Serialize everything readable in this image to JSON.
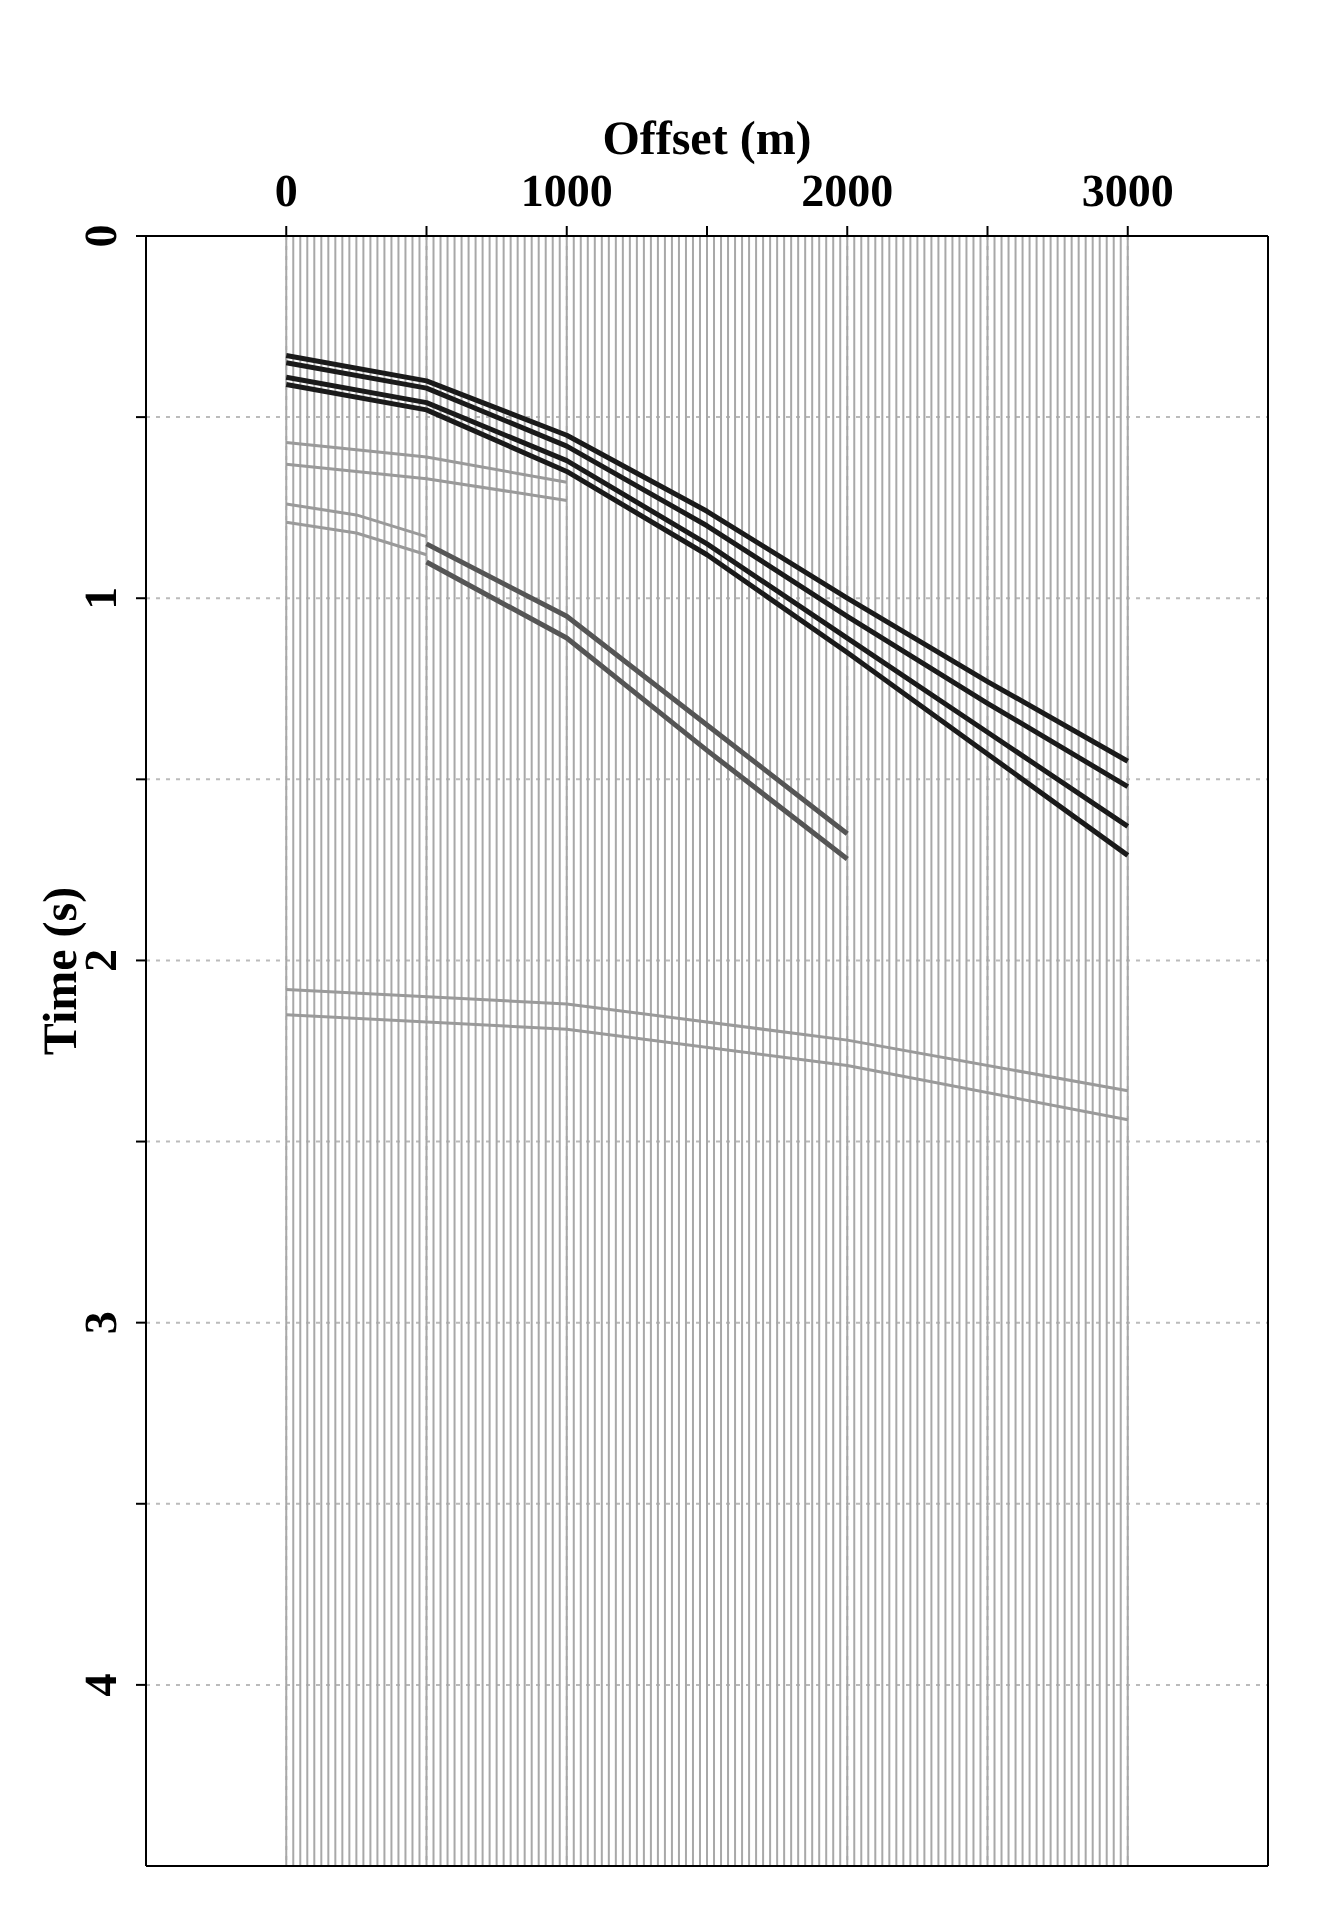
{
  "chart_data": {
    "type": "line",
    "xlabel": "Offset (m)",
    "ylabel": "Time (s)",
    "xlim": [
      -500,
      3500
    ],
    "ylim": [
      4.5,
      0
    ],
    "xticks": [
      0,
      {
        "value": 500,
        "label": null
      },
      1000,
      {
        "value": 1500,
        "label": null
      },
      2000,
      {
        "value": 2500,
        "label": null
      },
      3000
    ],
    "yticks": [
      0,
      {
        "value": 0.5,
        "label": null
      },
      1,
      {
        "value": 1.5,
        "label": null
      },
      2,
      {
        "value": 2.5,
        "label": null
      },
      3,
      {
        "value": 3.5,
        "label": null
      },
      4
    ],
    "grid": true,
    "marker": "none",
    "line_style": "solid",
    "series": [
      {
        "color": "#1a1a1a",
        "x": [
          0,
          500,
          1000,
          1500,
          2000,
          2500,
          3000
        ],
        "values": [
          0.33,
          0.4,
          0.55,
          0.76,
          1.0,
          1.23,
          1.45
        ]
      },
      {
        "color": "#1a1a1a",
        "x": [
          0,
          500,
          1000,
          1500,
          2000,
          2500,
          3000
        ],
        "values": [
          0.35,
          0.42,
          0.58,
          0.8,
          1.05,
          1.29,
          1.52
        ]
      },
      {
        "color": "#1a1a1a",
        "x": [
          0,
          500,
          1000,
          1500,
          2000,
          2500,
          3000
        ],
        "values": [
          0.39,
          0.46,
          0.62,
          0.85,
          1.11,
          1.37,
          1.63
        ]
      },
      {
        "color": "#1a1a1a",
        "x": [
          0,
          500,
          1000,
          1500,
          2000,
          2500,
          3000
        ],
        "values": [
          0.41,
          0.48,
          0.65,
          0.88,
          1.15,
          1.43,
          1.71
        ]
      },
      {
        "color": "#9a9a9a",
        "x": [
          0,
          500,
          1000
        ],
        "values": [
          0.57,
          0.61,
          0.68
        ]
      },
      {
        "color": "#9a9a9a",
        "x": [
          0,
          500,
          1000
        ],
        "values": [
          0.63,
          0.67,
          0.73
        ]
      },
      {
        "color": "#9a9a9a",
        "x": [
          0,
          250,
          500
        ],
        "values": [
          0.74,
          0.77,
          0.83
        ]
      },
      {
        "color": "#9a9a9a",
        "x": [
          0,
          250,
          500
        ],
        "values": [
          0.79,
          0.82,
          0.88
        ]
      },
      {
        "color": "#555555",
        "x": [
          500,
          1000,
          1500,
          2000
        ],
        "values": [
          0.85,
          1.05,
          1.35,
          1.65
        ]
      },
      {
        "color": "#555555",
        "x": [
          500,
          1000,
          1500,
          2000
        ],
        "values": [
          0.9,
          1.11,
          1.42,
          1.72
        ]
      },
      {
        "color": "#9a9a9a",
        "x": [
          0,
          1000,
          2000,
          3000
        ],
        "values": [
          2.08,
          2.12,
          2.22,
          2.36
        ]
      },
      {
        "color": "#9a9a9a",
        "x": [
          0,
          1000,
          2000,
          3000
        ],
        "values": [
          2.15,
          2.19,
          2.29,
          2.44
        ]
      }
    ],
    "ref_lines": [
      {
        "axis": "x",
        "value": 0,
        "color": "#a8a8a8"
      },
      {
        "axis": "x",
        "value": 25,
        "color": "#a8a8a8"
      },
      {
        "axis": "x",
        "value": 50,
        "color": "#a8a8a8"
      },
      {
        "axis": "x",
        "value": 75,
        "color": "#a8a8a8"
      },
      {
        "axis": "x",
        "value": 100,
        "color": "#a8a8a8"
      },
      {
        "axis": "x",
        "value": 125,
        "color": "#a8a8a8"
      },
      {
        "axis": "x",
        "value": 150,
        "color": "#a8a8a8"
      },
      {
        "axis": "x",
        "value": 175,
        "color": "#a8a8a8"
      },
      {
        "axis": "x",
        "value": 200,
        "color": "#a8a8a8"
      },
      {
        "axis": "x",
        "value": 225,
        "color": "#a8a8a8"
      },
      {
        "axis": "x",
        "value": 250,
        "color": "#a8a8a8"
      },
      {
        "axis": "x",
        "value": 275,
        "color": "#a8a8a8"
      },
      {
        "axis": "x",
        "value": 300,
        "color": "#a8a8a8"
      },
      {
        "axis": "x",
        "value": 325,
        "color": "#a8a8a8"
      },
      {
        "axis": "x",
        "value": 350,
        "color": "#a8a8a8"
      },
      {
        "axis": "x",
        "value": 375,
        "color": "#a8a8a8"
      },
      {
        "axis": "x",
        "value": 400,
        "color": "#a8a8a8"
      },
      {
        "axis": "x",
        "value": 425,
        "color": "#a8a8a8"
      },
      {
        "axis": "x",
        "value": 450,
        "color": "#a8a8a8"
      },
      {
        "axis": "x",
        "value": 475,
        "color": "#a8a8a8"
      },
      {
        "axis": "x",
        "value": 500,
        "color": "#a8a8a8"
      },
      {
        "axis": "x",
        "value": 525,
        "color": "#a8a8a8"
      },
      {
        "axis": "x",
        "value": 550,
        "color": "#a8a8a8"
      },
      {
        "axis": "x",
        "value": 575,
        "color": "#a8a8a8"
      },
      {
        "axis": "x",
        "value": 600,
        "color": "#a8a8a8"
      },
      {
        "axis": "x",
        "value": 625,
        "color": "#a8a8a8"
      },
      {
        "axis": "x",
        "value": 650,
        "color": "#a8a8a8"
      },
      {
        "axis": "x",
        "value": 675,
        "color": "#a8a8a8"
      },
      {
        "axis": "x",
        "value": 700,
        "color": "#a8a8a8"
      },
      {
        "axis": "x",
        "value": 725,
        "color": "#a8a8a8"
      },
      {
        "axis": "x",
        "value": 750,
        "color": "#a8a8a8"
      },
      {
        "axis": "x",
        "value": 775,
        "color": "#a8a8a8"
      },
      {
        "axis": "x",
        "value": 800,
        "color": "#a8a8a8"
      },
      {
        "axis": "x",
        "value": 825,
        "color": "#a8a8a8"
      },
      {
        "axis": "x",
        "value": 850,
        "color": "#a8a8a8"
      },
      {
        "axis": "x",
        "value": 875,
        "color": "#a8a8a8"
      },
      {
        "axis": "x",
        "value": 900,
        "color": "#a8a8a8"
      },
      {
        "axis": "x",
        "value": 925,
        "color": "#a8a8a8"
      },
      {
        "axis": "x",
        "value": 950,
        "color": "#a8a8a8"
      },
      {
        "axis": "x",
        "value": 975,
        "color": "#a8a8a8"
      },
      {
        "axis": "x",
        "value": 1000,
        "color": "#a8a8a8"
      },
      {
        "axis": "x",
        "value": 1025,
        "color": "#a8a8a8"
      },
      {
        "axis": "x",
        "value": 1050,
        "color": "#a8a8a8"
      },
      {
        "axis": "x",
        "value": 1075,
        "color": "#a8a8a8"
      },
      {
        "axis": "x",
        "value": 1100,
        "color": "#a8a8a8"
      },
      {
        "axis": "x",
        "value": 1125,
        "color": "#a8a8a8"
      },
      {
        "axis": "x",
        "value": 1150,
        "color": "#a8a8a8"
      },
      {
        "axis": "x",
        "value": 1175,
        "color": "#a8a8a8"
      },
      {
        "axis": "x",
        "value": 1200,
        "color": "#a8a8a8"
      },
      {
        "axis": "x",
        "value": 1225,
        "color": "#a8a8a8"
      },
      {
        "axis": "x",
        "value": 1250,
        "color": "#a8a8a8"
      },
      {
        "axis": "x",
        "value": 1275,
        "color": "#a8a8a8"
      },
      {
        "axis": "x",
        "value": 1300,
        "color": "#a8a8a8"
      },
      {
        "axis": "x",
        "value": 1325,
        "color": "#a8a8a8"
      },
      {
        "axis": "x",
        "value": 1350,
        "color": "#a8a8a8"
      },
      {
        "axis": "x",
        "value": 1375,
        "color": "#a8a8a8"
      },
      {
        "axis": "x",
        "value": 1400,
        "color": "#a8a8a8"
      },
      {
        "axis": "x",
        "value": 1425,
        "color": "#a8a8a8"
      },
      {
        "axis": "x",
        "value": 1450,
        "color": "#a8a8a8"
      },
      {
        "axis": "x",
        "value": 1475,
        "color": "#a8a8a8"
      },
      {
        "axis": "x",
        "value": 1500,
        "color": "#a8a8a8"
      },
      {
        "axis": "x",
        "value": 1525,
        "color": "#a8a8a8"
      },
      {
        "axis": "x",
        "value": 1550,
        "color": "#a8a8a8"
      },
      {
        "axis": "x",
        "value": 1575,
        "color": "#a8a8a8"
      },
      {
        "axis": "x",
        "value": 1600,
        "color": "#a8a8a8"
      },
      {
        "axis": "x",
        "value": 1625,
        "color": "#a8a8a8"
      },
      {
        "axis": "x",
        "value": 1650,
        "color": "#a8a8a8"
      },
      {
        "axis": "x",
        "value": 1675,
        "color": "#a8a8a8"
      },
      {
        "axis": "x",
        "value": 1700,
        "color": "#a8a8a8"
      },
      {
        "axis": "x",
        "value": 1725,
        "color": "#a8a8a8"
      },
      {
        "axis": "x",
        "value": 1750,
        "color": "#a8a8a8"
      },
      {
        "axis": "x",
        "value": 1775,
        "color": "#a8a8a8"
      },
      {
        "axis": "x",
        "value": 1800,
        "color": "#a8a8a8"
      },
      {
        "axis": "x",
        "value": 1825,
        "color": "#a8a8a8"
      },
      {
        "axis": "x",
        "value": 1850,
        "color": "#a8a8a8"
      },
      {
        "axis": "x",
        "value": 1875,
        "color": "#a8a8a8"
      },
      {
        "axis": "x",
        "value": 1900,
        "color": "#a8a8a8"
      },
      {
        "axis": "x",
        "value": 1925,
        "color": "#a8a8a8"
      },
      {
        "axis": "x",
        "value": 1950,
        "color": "#a8a8a8"
      },
      {
        "axis": "x",
        "value": 1975,
        "color": "#a8a8a8"
      },
      {
        "axis": "x",
        "value": 2000,
        "color": "#a8a8a8"
      },
      {
        "axis": "x",
        "value": 2025,
        "color": "#a8a8a8"
      },
      {
        "axis": "x",
        "value": 2050,
        "color": "#a8a8a8"
      },
      {
        "axis": "x",
        "value": 2075,
        "color": "#a8a8a8"
      },
      {
        "axis": "x",
        "value": 2100,
        "color": "#a8a8a8"
      },
      {
        "axis": "x",
        "value": 2125,
        "color": "#a8a8a8"
      },
      {
        "axis": "x",
        "value": 2150,
        "color": "#a8a8a8"
      },
      {
        "axis": "x",
        "value": 2175,
        "color": "#a8a8a8"
      },
      {
        "axis": "x",
        "value": 2200,
        "color": "#a8a8a8"
      },
      {
        "axis": "x",
        "value": 2225,
        "color": "#a8a8a8"
      },
      {
        "axis": "x",
        "value": 2250,
        "color": "#a8a8a8"
      },
      {
        "axis": "x",
        "value": 2275,
        "color": "#a8a8a8"
      },
      {
        "axis": "x",
        "value": 2300,
        "color": "#a8a8a8"
      },
      {
        "axis": "x",
        "value": 2325,
        "color": "#a8a8a8"
      },
      {
        "axis": "x",
        "value": 2350,
        "color": "#a8a8a8"
      },
      {
        "axis": "x",
        "value": 2375,
        "color": "#a8a8a8"
      },
      {
        "axis": "x",
        "value": 2400,
        "color": "#a8a8a8"
      },
      {
        "axis": "x",
        "value": 2425,
        "color": "#a8a8a8"
      },
      {
        "axis": "x",
        "value": 2450,
        "color": "#a8a8a8"
      },
      {
        "axis": "x",
        "value": 2475,
        "color": "#a8a8a8"
      },
      {
        "axis": "x",
        "value": 2500,
        "color": "#a8a8a8"
      },
      {
        "axis": "x",
        "value": 2525,
        "color": "#a8a8a8"
      },
      {
        "axis": "x",
        "value": 2550,
        "color": "#a8a8a8"
      },
      {
        "axis": "x",
        "value": 2575,
        "color": "#a8a8a8"
      },
      {
        "axis": "x",
        "value": 2600,
        "color": "#a8a8a8"
      },
      {
        "axis": "x",
        "value": 2625,
        "color": "#a8a8a8"
      },
      {
        "axis": "x",
        "value": 2650,
        "color": "#a8a8a8"
      },
      {
        "axis": "x",
        "value": 2675,
        "color": "#a8a8a8"
      },
      {
        "axis": "x",
        "value": 2700,
        "color": "#a8a8a8"
      },
      {
        "axis": "x",
        "value": 2725,
        "color": "#a8a8a8"
      },
      {
        "axis": "x",
        "value": 2750,
        "color": "#a8a8a8"
      },
      {
        "axis": "x",
        "value": 2775,
        "color": "#a8a8a8"
      },
      {
        "axis": "x",
        "value": 2800,
        "color": "#a8a8a8"
      },
      {
        "axis": "x",
        "value": 2825,
        "color": "#a8a8a8"
      },
      {
        "axis": "x",
        "value": 2850,
        "color": "#a8a8a8"
      },
      {
        "axis": "x",
        "value": 2875,
        "color": "#a8a8a8"
      },
      {
        "axis": "x",
        "value": 2900,
        "color": "#a8a8a8"
      },
      {
        "axis": "x",
        "value": 2925,
        "color": "#a8a8a8"
      },
      {
        "axis": "x",
        "value": 2950,
        "color": "#a8a8a8"
      },
      {
        "axis": "x",
        "value": 2975,
        "color": "#a8a8a8"
      },
      {
        "axis": "x",
        "value": 3000,
        "color": "#a8a8a8"
      }
    ]
  }
}
